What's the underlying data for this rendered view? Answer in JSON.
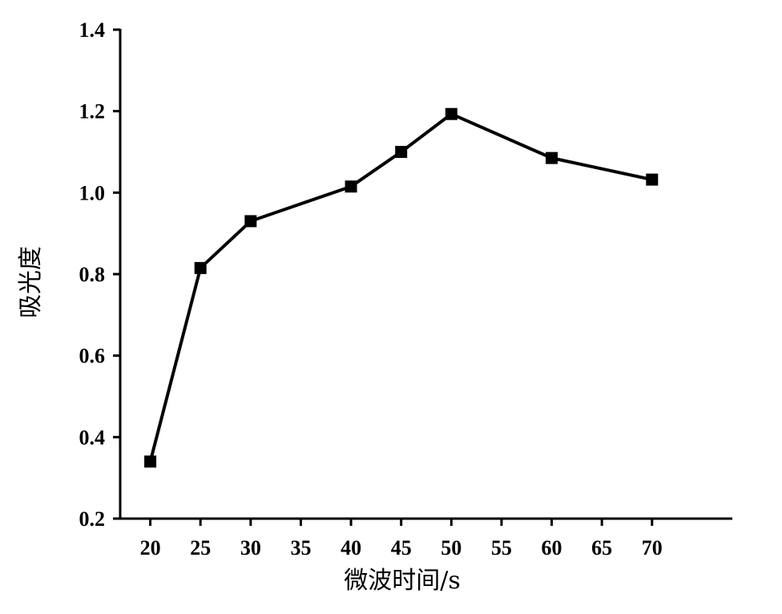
{
  "chart_data": {
    "type": "line",
    "title": "",
    "xlabel": "微波时间/s",
    "ylabel": "吸光度",
    "xlim": [
      17,
      78
    ],
    "ylim": [
      0.2,
      1.4
    ],
    "x_ticks": [
      20,
      25,
      30,
      35,
      40,
      45,
      50,
      55,
      60,
      65,
      70
    ],
    "y_ticks": [
      0.2,
      0.4,
      0.6,
      0.8,
      1.0,
      1.2,
      1.4
    ],
    "y_tick_labels": [
      "0.2",
      "0.4",
      "0.6",
      "0.8",
      "1.0",
      "1.2",
      "1.4"
    ],
    "grid": false,
    "series": [
      {
        "x": [
          20,
          25,
          30,
          40,
          45,
          50,
          60,
          70
        ],
        "y": [
          0.34,
          0.815,
          0.93,
          1.015,
          1.1,
          1.193,
          1.085,
          1.032
        ],
        "marker": "square",
        "color": "#000000"
      }
    ]
  }
}
